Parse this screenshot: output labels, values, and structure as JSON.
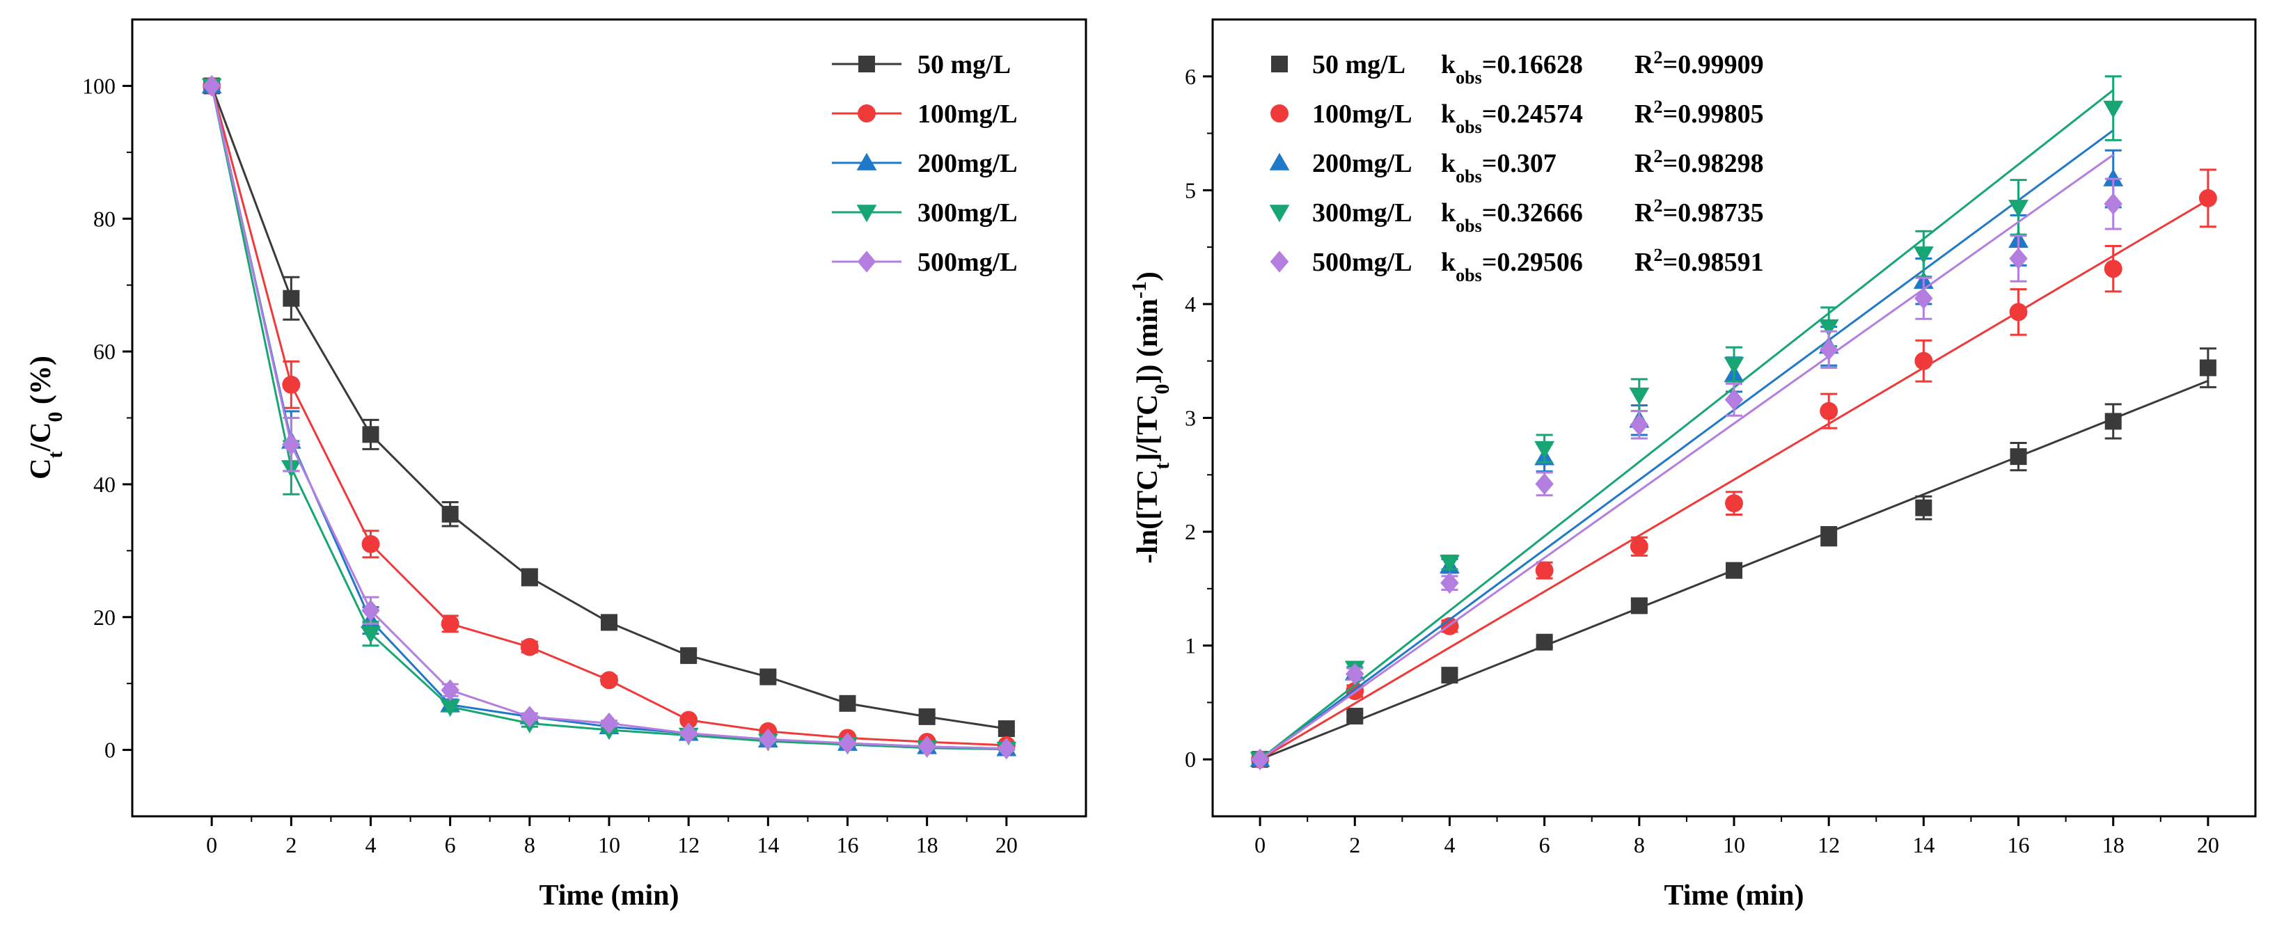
{
  "chart_data": [
    {
      "type": "line",
      "title": "",
      "xlabel": "Time (min)",
      "ylabel": "Ct/C0 (%)",
      "ylabel_parts": {
        "base": "C",
        "sub1": "t",
        "slash": "/C",
        "sub2": "0",
        "unit": " (%)"
      },
      "xlim": [
        -2,
        22
      ],
      "ylim": [
        -10,
        110
      ],
      "xticks": [
        "0",
        "2",
        "4",
        "6",
        "8",
        "10",
        "12",
        "14",
        "16",
        "18",
        "20"
      ],
      "yticks": [
        "0",
        "20",
        "40",
        "60",
        "80",
        "100"
      ],
      "legend_position": "top-right",
      "x": [
        0,
        2,
        4,
        6,
        8,
        10,
        12,
        14,
        16,
        18,
        20
      ],
      "series": [
        {
          "name": "50 mg/L",
          "color": "#3a3a3a",
          "marker": "square",
          "values": [
            100,
            68,
            47.5,
            35.5,
            26,
            19.2,
            14.2,
            11,
            7,
            5,
            3.2
          ],
          "errors": [
            0,
            3.2,
            2.2,
            1.8,
            1.2,
            0.8,
            0.8,
            0.6,
            0.5,
            0.4,
            0.4
          ]
        },
        {
          "name": "100mg/L",
          "color": "#f03a3a",
          "marker": "circle",
          "values": [
            100,
            55,
            31,
            19,
            15.5,
            10.5,
            4.5,
            2.8,
            1.8,
            1.2,
            0.7
          ],
          "errors": [
            0,
            3.5,
            2,
            1.2,
            0.8,
            0.6,
            0.4,
            0.3,
            0.3,
            0.2,
            0.2
          ]
        },
        {
          "name": "200mg/L",
          "color": "#1f78c8",
          "marker": "triangle-up",
          "values": [
            100,
            46.5,
            19.5,
            6.8,
            5,
            3.5,
            2.5,
            1.5,
            1,
            0.5,
            0.2
          ],
          "errors": [
            0,
            4.5,
            2,
            0.8,
            0.5,
            0.4,
            0.3,
            0.3,
            0.2,
            0.2,
            0.1
          ]
        },
        {
          "name": "300mg/L",
          "color": "#17a673",
          "marker": "triangle-down",
          "values": [
            100,
            42.5,
            17.5,
            6.5,
            4,
            3,
            2.2,
            1.3,
            0.8,
            0.3,
            0.1
          ],
          "errors": [
            0,
            4,
            1.8,
            0.7,
            0.5,
            0.3,
            0.3,
            0.2,
            0.2,
            0.1,
            0.1
          ]
        },
        {
          "name": "500mg/L",
          "color": "#b47ee0",
          "marker": "diamond",
          "values": [
            100,
            46,
            21,
            9,
            5,
            4,
            2.5,
            1.6,
            1,
            0.5,
            0.2
          ],
          "errors": [
            0,
            4,
            2,
            0.9,
            0.5,
            0.4,
            0.3,
            0.2,
            0.2,
            0.1,
            0.1
          ]
        }
      ]
    },
    {
      "type": "scatter",
      "title": "",
      "xlabel": "Time (min)",
      "ylabel": "-ln([TCt]/[TC0]) (min-1)",
      "ylabel_parts": {
        "pre": "-ln([TC",
        "sub1": "t",
        "mid": "]/[TC",
        "sub2": "0",
        "post": "]) (min",
        "sup": "-1",
        "end": ")"
      },
      "xlim": [
        -1,
        21
      ],
      "ylim": [
        -0.5,
        6.5
      ],
      "xticks": [
        "0",
        "2",
        "4",
        "6",
        "8",
        "10",
        "12",
        "14",
        "16",
        "18",
        "20"
      ],
      "yticks": [
        "0",
        "1",
        "2",
        "3",
        "4",
        "5",
        "6"
      ],
      "legend_position": "top-left",
      "k_label": "k",
      "k_sub": "obs",
      "r2_label": "R",
      "r2_sup": "2",
      "series": [
        {
          "name": "50 mg/L",
          "color": "#3a3a3a",
          "marker": "square",
          "k_obs": "0.16628",
          "r2": "0.99909",
          "x": [
            0,
            2,
            4,
            6,
            8,
            10,
            12,
            14,
            16,
            18,
            20
          ],
          "values": [
            0,
            0.38,
            0.74,
            1.03,
            1.35,
            1.66,
            1.96,
            2.21,
            2.66,
            2.97,
            3.44
          ],
          "errors": [
            0,
            0.03,
            0.03,
            0.04,
            0.05,
            0.06,
            0.08,
            0.1,
            0.12,
            0.15,
            0.17
          ],
          "fit_end": 20
        },
        {
          "name": "100mg/L",
          "color": "#f03a3a",
          "marker": "circle",
          "k_obs": "0.24574",
          "r2": "0.99805",
          "x": [
            0,
            2,
            4,
            6,
            8,
            10,
            12,
            14,
            16,
            18,
            20
          ],
          "values": [
            0,
            0.6,
            1.17,
            1.66,
            1.87,
            2.25,
            3.06,
            3.5,
            3.93,
            4.31,
            4.93
          ],
          "errors": [
            0,
            0.05,
            0.05,
            0.07,
            0.08,
            0.1,
            0.15,
            0.18,
            0.2,
            0.2,
            0.25
          ],
          "fit_end": 20
        },
        {
          "name": "200mg/L",
          "color": "#1f78c8",
          "marker": "triangle-up",
          "k_obs": "0.307",
          "r2": "0.98298",
          "x": [
            0,
            2,
            4,
            6,
            8,
            10,
            12,
            14,
            16,
            18
          ],
          "values": [
            0,
            0.76,
            1.7,
            2.65,
            2.98,
            3.38,
            3.63,
            4.2,
            4.56,
            5.1
          ],
          "errors": [
            0,
            0.05,
            0.06,
            0.12,
            0.13,
            0.15,
            0.17,
            0.2,
            0.22,
            0.25
          ],
          "fit_end": 18
        },
        {
          "name": "300mg/L",
          "color": "#17a673",
          "marker": "triangle-down",
          "k_obs": "0.32666",
          "r2": "0.98735",
          "x": [
            0,
            2,
            4,
            6,
            8,
            10,
            12,
            14,
            16,
            18
          ],
          "values": [
            0,
            0.8,
            1.73,
            2.73,
            3.2,
            3.47,
            3.8,
            4.44,
            4.85,
            5.72
          ],
          "errors": [
            0,
            0.05,
            0.06,
            0.12,
            0.14,
            0.15,
            0.17,
            0.2,
            0.24,
            0.28
          ],
          "fit_end": 18
        },
        {
          "name": "500mg/L",
          "color": "#b47ee0",
          "marker": "diamond",
          "k_obs": "0.29506",
          "r2": "0.98591",
          "x": [
            0,
            2,
            4,
            6,
            8,
            10,
            12,
            14,
            16,
            18
          ],
          "values": [
            0,
            0.75,
            1.55,
            2.42,
            2.94,
            3.16,
            3.6,
            4.05,
            4.4,
            4.88
          ],
          "errors": [
            0,
            0.05,
            0.06,
            0.1,
            0.12,
            0.14,
            0.16,
            0.18,
            0.2,
            0.22
          ],
          "fit_end": 18
        }
      ]
    }
  ]
}
